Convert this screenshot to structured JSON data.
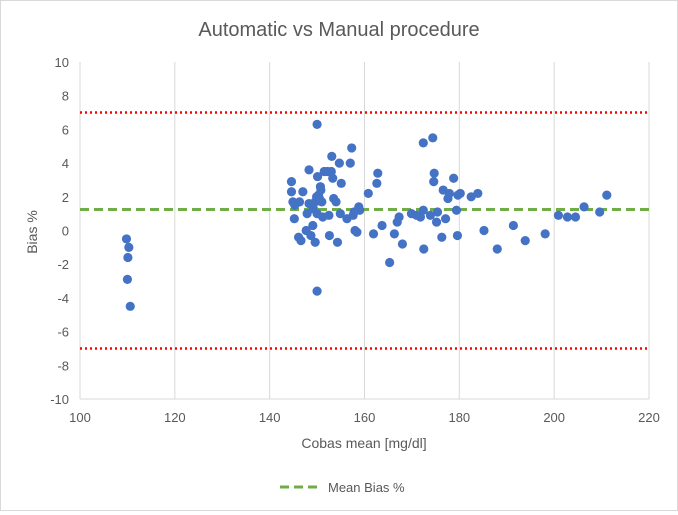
{
  "chart_data": {
    "type": "scatter",
    "title": "Automatic vs Manual procedure",
    "xlabel": "Cobas mean [mg/dl]",
    "ylabel": "Bias %",
    "xlim": [
      100,
      220
    ],
    "ylim": [
      -10,
      10
    ],
    "x_ticks": [
      100,
      120,
      140,
      160,
      180,
      200,
      220
    ],
    "y_ticks": [
      -10,
      -8,
      -6,
      -4,
      -2,
      0,
      2,
      4,
      6,
      8,
      10
    ],
    "grid": "vertical",
    "legend_position": "bottom",
    "colors": {
      "points": "#4472C4",
      "mean_line": "#70AD47",
      "limit_lines": "#FF0000",
      "grid": "#d9d9d9",
      "text": "#595959"
    },
    "reference_lines": [
      {
        "name": "Mean Bias %",
        "y": 1.25,
        "style": "dashed",
        "in_legend": true
      },
      {
        "name": "upper limit",
        "y": 7,
        "style": "dotted",
        "in_legend": false
      },
      {
        "name": "lower limit",
        "y": -7,
        "style": "dotted",
        "in_legend": false
      }
    ],
    "legend": [
      {
        "label": "Mean Bias %"
      }
    ],
    "points": [
      [
        109.8,
        -0.5
      ],
      [
        110.3,
        -1.0
      ],
      [
        110.1,
        -1.6
      ],
      [
        110.0,
        -2.9
      ],
      [
        110.6,
        -4.5
      ],
      [
        144.6,
        2.9
      ],
      [
        144.6,
        2.3
      ],
      [
        144.9,
        1.7
      ],
      [
        145.3,
        1.5
      ],
      [
        145.2,
        0.7
      ],
      [
        146.3,
        1.7
      ],
      [
        146.1,
        -0.4
      ],
      [
        146.6,
        -0.6
      ],
      [
        147.0,
        2.3
      ],
      [
        147.7,
        0.0
      ],
      [
        147.9,
        1.0
      ],
      [
        148.3,
        3.6
      ],
      [
        148.3,
        1.6
      ],
      [
        148.7,
        -0.3
      ],
      [
        148.9,
        1.5
      ],
      [
        149.2,
        1.3
      ],
      [
        149.1,
        0.3
      ],
      [
        149.6,
        -0.7
      ],
      [
        149.6,
        1.7
      ],
      [
        149.9,
        2.0
      ],
      [
        150.0,
        6.3
      ],
      [
        150.0,
        1.0
      ],
      [
        150.0,
        -3.6
      ],
      [
        150.1,
        3.2
      ],
      [
        150.3,
        2.1
      ],
      [
        150.5,
        1.9
      ],
      [
        150.7,
        2.6
      ],
      [
        150.8,
        2.4
      ],
      [
        151.0,
        1.7
      ],
      [
        151.2,
        0.8
      ],
      [
        151.5,
        3.5
      ],
      [
        152.2,
        3.5
      ],
      [
        152.6,
        -0.3
      ],
      [
        152.5,
        0.9
      ],
      [
        153.1,
        4.4
      ],
      [
        153.0,
        3.5
      ],
      [
        153.3,
        3.1
      ],
      [
        153.5,
        1.9
      ],
      [
        154.0,
        1.7
      ],
      [
        154.3,
        -0.7
      ],
      [
        154.7,
        4.0
      ],
      [
        154.9,
        1.0
      ],
      [
        155.1,
        2.8
      ],
      [
        156.3,
        0.7
      ],
      [
        157.0,
        4.0
      ],
      [
        157.3,
        4.9
      ],
      [
        157.6,
        0.9
      ],
      [
        157.8,
        1.1
      ],
      [
        158.0,
        0.0
      ],
      [
        158.4,
        -0.1
      ],
      [
        158.8,
        1.4
      ],
      [
        159.0,
        1.2
      ],
      [
        160.8,
        2.2
      ],
      [
        161.9,
        -0.2
      ],
      [
        162.6,
        2.8
      ],
      [
        162.8,
        3.4
      ],
      [
        163.7,
        0.3
      ],
      [
        165.3,
        -1.9
      ],
      [
        166.3,
        -0.2
      ],
      [
        166.9,
        0.5
      ],
      [
        167.3,
        0.8
      ],
      [
        168.0,
        -0.8
      ],
      [
        169.9,
        1.0
      ],
      [
        171.0,
        0.9
      ],
      [
        171.8,
        0.8
      ],
      [
        172.4,
        5.2
      ],
      [
        172.4,
        1.2
      ],
      [
        172.5,
        -1.1
      ],
      [
        173.9,
        0.9
      ],
      [
        174.4,
        5.5
      ],
      [
        174.6,
        2.9
      ],
      [
        174.7,
        3.4
      ],
      [
        175.2,
        0.5
      ],
      [
        175.4,
        1.1
      ],
      [
        176.3,
        -0.4
      ],
      [
        176.6,
        2.4
      ],
      [
        177.1,
        0.7
      ],
      [
        177.6,
        1.9
      ],
      [
        177.9,
        2.2
      ],
      [
        178.8,
        3.1
      ],
      [
        179.4,
        1.2
      ],
      [
        179.6,
        -0.3
      ],
      [
        179.7,
        2.1
      ],
      [
        180.2,
        2.2
      ],
      [
        182.5,
        2.0
      ],
      [
        183.9,
        2.2
      ],
      [
        185.2,
        0.0
      ],
      [
        188.0,
        -1.1
      ],
      [
        191.4,
        0.3
      ],
      [
        193.9,
        -0.6
      ],
      [
        198.1,
        -0.2
      ],
      [
        200.9,
        0.9
      ],
      [
        202.8,
        0.8
      ],
      [
        204.5,
        0.8
      ],
      [
        206.3,
        1.4
      ],
      [
        209.6,
        1.1
      ],
      [
        211.1,
        2.1
      ]
    ]
  }
}
